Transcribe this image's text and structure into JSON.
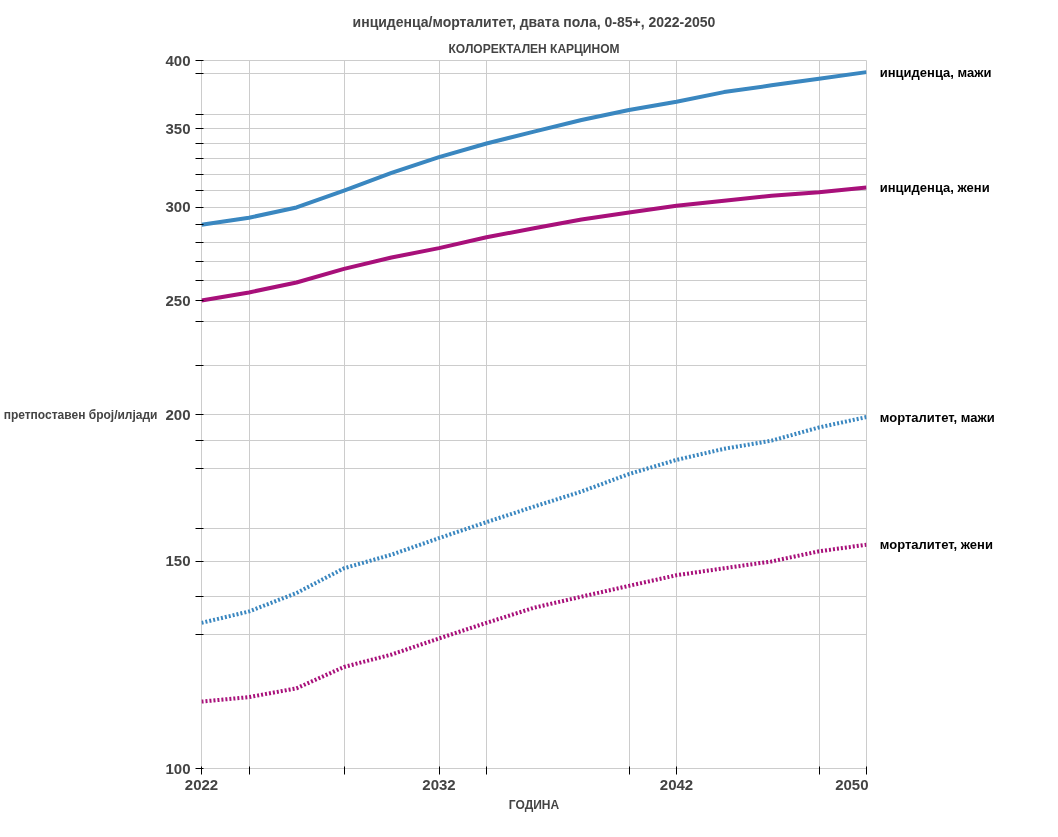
{
  "chart_data": {
    "type": "line",
    "title": "инциденца/морталитет, двата пола, 0-85+, 2022-2050",
    "subtitle": "КОЛОРЕКТАЛЕН КАРЦИНОМ",
    "xlabel": "ГОДИНА",
    "ylabel": "претпоставен број/илјади",
    "log": "y",
    "x": [
      2022,
      2024,
      2026,
      2028,
      2030,
      2032,
      2034,
      2036,
      2038,
      2040,
      2042,
      2044,
      2046,
      2048,
      2050
    ],
    "xlim": [
      2022,
      2050
    ],
    "xticks": [
      2022,
      {
        "value": 2024,
        "label": null
      },
      {
        "value": 2028,
        "label": null
      },
      2032,
      {
        "value": 2034,
        "label": null
      },
      {
        "value": 2040,
        "label": null
      },
      2042,
      {
        "value": 2048,
        "label": null
      },
      2050
    ],
    "ylim": [
      100,
      400
    ],
    "yticks": [
      100,
      {
        "value": 130,
        "label": null
      },
      {
        "value": 140,
        "label": null
      },
      150,
      {
        "value": 160,
        "label": null
      },
      {
        "value": 180,
        "label": null
      },
      {
        "value": 190,
        "label": null
      },
      200,
      {
        "value": 220,
        "label": null
      },
      {
        "value": 240,
        "label": null
      },
      250,
      {
        "value": 260,
        "label": null
      },
      {
        "value": 270,
        "label": null
      },
      {
        "value": 280,
        "label": null
      },
      {
        "value": 290,
        "label": null
      },
      300,
      {
        "value": 310,
        "label": null
      },
      {
        "value": 320,
        "label": null
      },
      {
        "value": 330,
        "label": null
      },
      {
        "value": 340,
        "label": null
      },
      350,
      {
        "value": 360,
        "label": null
      },
      {
        "value": 390,
        "label": null
      },
      400
    ],
    "grid": true,
    "legend": false,
    "series": [
      {
        "name": "инциденца, мажи",
        "color": "#3a87c0",
        "line_style": "solid",
        "values": [
          290,
          294,
          300,
          310,
          321,
          331,
          340,
          348,
          356,
          363,
          369,
          376,
          381,
          386,
          391
        ]
      },
      {
        "name": "инциденца, жени",
        "color": "#a8107a",
        "line_style": "solid",
        "values": [
          250,
          254,
          259,
          266,
          272,
          277,
          283,
          288,
          293,
          297,
          301,
          304,
          307,
          309,
          312
        ]
      },
      {
        "name": "морталитет, мажи",
        "color": "#3a87c0",
        "line_style": "dotted",
        "values": [
          133,
          136,
          141,
          148,
          152,
          157,
          162,
          167,
          172,
          178,
          183,
          187,
          190,
          195,
          199
        ]
      },
      {
        "name": "морталитет, жени",
        "color": "#a8107a",
        "line_style": "dotted",
        "values": [
          114,
          115,
          117,
          122,
          125,
          129,
          133,
          137,
          140,
          143,
          146,
          148,
          150,
          153,
          155
        ]
      }
    ]
  }
}
